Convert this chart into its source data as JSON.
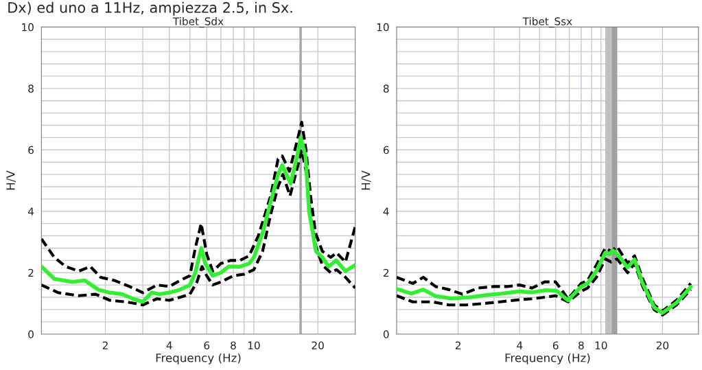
{
  "chart_data": [
    {
      "type": "line",
      "title": "Tibet_Sdx",
      "xlabel": "Frequency (Hz)",
      "ylabel": "H/V",
      "log": "x",
      "grid": true,
      "annotations": [
        "Dx) ed uno a 11Hz, ampiezza 2.5, in Sx."
      ],
      "xlim": [
        1,
        30
      ],
      "xticks": [
        {
          "value": 1,
          "label": null
        },
        2,
        {
          "value": 3,
          "label": null
        },
        4,
        {
          "value": 5,
          "label": null
        },
        6,
        {
          "value": 7,
          "label": null
        },
        8,
        {
          "value": 9,
          "label": null
        },
        10,
        20,
        {
          "value": 30,
          "label": null
        }
      ],
      "ylim": [
        0,
        10
      ],
      "yticks": [
        0,
        {
          "value": 0.4,
          "label": null
        },
        {
          "value": 0.8,
          "label": null
        },
        {
          "value": 1.2,
          "label": null
        },
        {
          "value": 1.6,
          "label": null
        },
        2,
        {
          "value": 2.4,
          "label": null
        },
        {
          "value": 2.8,
          "label": null
        },
        {
          "value": 3.2,
          "label": null
        },
        {
          "value": 3.6,
          "label": null
        },
        4,
        {
          "value": 4.4,
          "label": null
        },
        {
          "value": 4.8,
          "label": null
        },
        {
          "value": 5.2,
          "label": null
        },
        {
          "value": 5.6,
          "label": null
        },
        6,
        {
          "value": 6.4,
          "label": null
        },
        {
          "value": 6.8,
          "label": null
        },
        {
          "value": 7.2,
          "label": null
        },
        {
          "value": 7.6,
          "label": null
        },
        8,
        {
          "value": 8.4,
          "label": null
        },
        {
          "value": 8.8,
          "label": null
        },
        {
          "value": 9.2,
          "label": null
        },
        {
          "value": 9.6,
          "label": null
        },
        10
      ],
      "ref_lines": [
        {
          "axis": "x",
          "value": 16.6,
          "color": "#a8a8a8"
        }
      ],
      "series": [
        {
          "type": "line",
          "color": "#000000",
          "line_style": "dashed",
          "x": [
            1.0,
            1.15,
            1.3,
            1.5,
            1.7,
            1.9,
            2.2,
            2.6,
            3.0,
            3.5,
            4.0,
            4.5,
            5.0,
            5.3,
            5.65,
            6.0,
            6.4,
            7.0,
            7.8,
            8.6,
            9.5,
            10.5,
            12,
            13,
            13.6,
            14.7,
            16,
            16.8,
            17.6,
            18.5,
            19.5,
            21,
            23,
            24.5,
            27,
            30
          ],
          "values": [
            3.1,
            2.5,
            2.2,
            2.05,
            2.2,
            1.85,
            1.75,
            1.55,
            1.35,
            1.6,
            1.55,
            1.75,
            1.9,
            2.8,
            3.6,
            2.6,
            2.05,
            2.3,
            2.4,
            2.4,
            2.55,
            3.2,
            4.5,
            5.7,
            5.8,
            5.3,
            6.3,
            6.9,
            6.0,
            4.5,
            3.3,
            2.7,
            2.5,
            2.65,
            2.35,
            3.5
          ]
        },
        {
          "type": "line",
          "color": "#000000",
          "line_style": "dashed",
          "x": [
            1.0,
            1.2,
            1.5,
            1.8,
            2.1,
            2.5,
            3.0,
            3.5,
            4.0,
            4.5,
            5.0,
            5.4,
            5.7,
            6.0,
            6.4,
            7.0,
            8.0,
            9.0,
            10,
            11,
            12,
            13,
            13.7,
            14.8,
            16,
            16.8,
            17.6,
            18.5,
            19.5,
            21,
            23,
            24.5,
            27,
            30
          ],
          "values": [
            1.6,
            1.35,
            1.25,
            1.3,
            1.1,
            1.05,
            0.95,
            1.15,
            1.1,
            1.2,
            1.3,
            1.7,
            2.2,
            1.9,
            1.6,
            1.7,
            1.9,
            1.95,
            2.1,
            2.7,
            3.9,
            4.8,
            5.2,
            4.5,
            5.4,
            6.0,
            5.3,
            3.8,
            2.9,
            2.25,
            2.0,
            2.1,
            1.85,
            1.5
          ]
        },
        {
          "type": "line",
          "color": "#33ee33",
          "line_style": "solid",
          "x": [
            1.0,
            1.15,
            1.4,
            1.6,
            1.85,
            2.1,
            2.4,
            2.7,
            3.0,
            3.3,
            3.6,
            4.0,
            4.5,
            5.0,
            5.3,
            5.66,
            5.9,
            6.4,
            7.0,
            7.6,
            8.6,
            9.5,
            10,
            11,
            12,
            13,
            13.6,
            14.9,
            16,
            16.6,
            17.5,
            18.2,
            19.6,
            21,
            22.5,
            24.4,
            27,
            30
          ],
          "values": [
            2.2,
            1.8,
            1.7,
            1.75,
            1.45,
            1.35,
            1.3,
            1.15,
            1.05,
            1.35,
            1.3,
            1.35,
            1.45,
            1.6,
            2.0,
            2.8,
            2.3,
            1.9,
            2.0,
            2.2,
            2.2,
            2.3,
            2.5,
            3.3,
            4.3,
            5.2,
            5.5,
            4.9,
            5.8,
            6.4,
            5.8,
            4.0,
            2.7,
            2.5,
            2.2,
            2.4,
            2.05,
            2.25
          ]
        }
      ]
    },
    {
      "type": "line",
      "title": "Tibet_Ssx",
      "xlabel": "Frequency (Hz)",
      "ylabel": "H/V",
      "log": "x",
      "grid": true,
      "xlim": [
        1,
        30
      ],
      "xticks": [
        {
          "value": 1,
          "label": null
        },
        2,
        {
          "value": 3,
          "label": null
        },
        4,
        {
          "value": 5,
          "label": null
        },
        6,
        {
          "value": 7,
          "label": null
        },
        8,
        {
          "value": 9,
          "label": null
        },
        10,
        20,
        {
          "value": 30,
          "label": null
        }
      ],
      "ylim": [
        0,
        10
      ],
      "yticks": [
        0,
        {
          "value": 0.4,
          "label": null
        },
        {
          "value": 0.8,
          "label": null
        },
        {
          "value": 1.2,
          "label": null
        },
        {
          "value": 1.6,
          "label": null
        },
        2,
        {
          "value": 2.4,
          "label": null
        },
        {
          "value": 2.8,
          "label": null
        },
        {
          "value": 3.2,
          "label": null
        },
        {
          "value": 3.6,
          "label": null
        },
        4,
        {
          "value": 4.4,
          "label": null
        },
        {
          "value": 4.8,
          "label": null
        },
        {
          "value": 5.2,
          "label": null
        },
        {
          "value": 5.6,
          "label": null
        },
        6,
        {
          "value": 6.4,
          "label": null
        },
        {
          "value": 6.8,
          "label": null
        },
        {
          "value": 7.2,
          "label": null
        },
        {
          "value": 7.6,
          "label": null
        },
        8,
        {
          "value": 8.4,
          "label": null
        },
        {
          "value": 8.8,
          "label": null
        },
        {
          "value": 9.2,
          "label": null
        },
        {
          "value": 9.6,
          "label": null
        },
        10
      ],
      "bands": [
        {
          "axis": "x",
          "from": 10.5,
          "to": 12.0,
          "color": "#c0c0c0"
        },
        {
          "axis": "x",
          "from": 11.3,
          "to": 12.0,
          "color": "#a0a0a0"
        }
      ],
      "series": [
        {
          "type": "line",
          "color": "#000000",
          "line_style": "dashed",
          "x": [
            1.0,
            1.2,
            1.35,
            1.55,
            1.8,
            2.1,
            2.5,
            3.0,
            3.5,
            4.0,
            4.6,
            5.3,
            6.0,
            6.9,
            8.0,
            8.6,
            9.5,
            10.5,
            11.2,
            12,
            13.5,
            14.6,
            16,
            18.2,
            20,
            23.4,
            27.5
          ],
          "values": [
            1.85,
            1.65,
            1.85,
            1.55,
            1.45,
            1.3,
            1.5,
            1.55,
            1.55,
            1.6,
            1.5,
            1.7,
            1.7,
            1.15,
            1.65,
            1.75,
            2.25,
            2.8,
            2.7,
            2.85,
            2.3,
            2.55,
            1.8,
            0.95,
            0.75,
            1.1,
            1.65
          ]
        },
        {
          "type": "line",
          "color": "#000000",
          "line_style": "dashed",
          "x": [
            1.0,
            1.2,
            1.5,
            1.8,
            2.2,
            2.7,
            3.2,
            4.0,
            4.6,
            5.3,
            6.0,
            6.9,
            8.0,
            8.6,
            9.5,
            10.5,
            11.2,
            12,
            13.5,
            14.6,
            16,
            18.2,
            20,
            23.4,
            27.5
          ],
          "values": [
            1.25,
            1.05,
            1.05,
            0.95,
            0.95,
            1.0,
            1.05,
            1.12,
            1.15,
            1.2,
            1.25,
            1.05,
            1.4,
            1.5,
            1.85,
            2.45,
            2.35,
            2.45,
            2.0,
            2.3,
            1.55,
            0.8,
            0.62,
            0.95,
            1.45
          ]
        },
        {
          "type": "line",
          "color": "#33ee33",
          "line_style": "solid",
          "x": [
            1.0,
            1.18,
            1.35,
            1.55,
            1.85,
            2.3,
            2.8,
            3.27,
            3.96,
            4.6,
            5.35,
            6.06,
            6.9,
            7.97,
            8.6,
            9.5,
            10.5,
            11.0,
            11.4,
            12.1,
            13.5,
            14.6,
            15.9,
            18.2,
            20,
            23.4,
            27.5
          ],
          "values": [
            1.47,
            1.32,
            1.45,
            1.24,
            1.16,
            1.2,
            1.28,
            1.32,
            1.39,
            1.36,
            1.43,
            1.41,
            1.1,
            1.54,
            1.65,
            2.06,
            2.65,
            2.6,
            2.73,
            2.58,
            2.17,
            2.43,
            1.69,
            0.87,
            0.69,
            1.02,
            1.54
          ]
        }
      ]
    }
  ]
}
